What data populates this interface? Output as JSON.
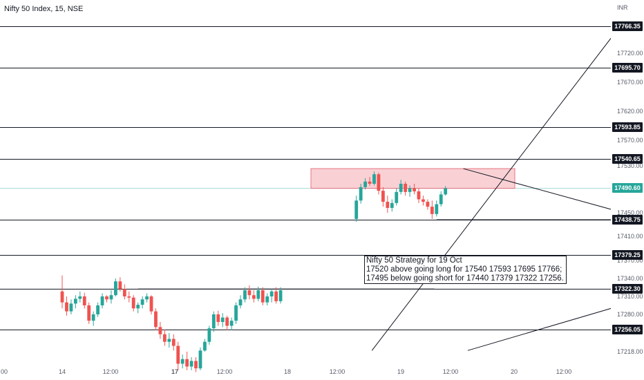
{
  "title": "Nifty 50 Index, 15, NSE",
  "currency": "INR",
  "colors": {
    "up": "#26a69a",
    "down": "#ef5350",
    "line": "#131722",
    "current": "#26a69a",
    "zone": "#f8c9ce",
    "zone_border": "#e35a6a"
  },
  "chart_data": {
    "type": "candlestick",
    "symbol": "Nifty 50 Index",
    "interval": "15",
    "exchange": "NSE",
    "y_ticks": [
      17720.0,
      17670.0,
      17620.0,
      17570.0,
      17530.0,
      17450.0,
      17410.0,
      17370.0,
      17340.0,
      17310.0,
      17280.0,
      17218.0
    ],
    "x_ticks": [
      "00",
      "14",
      "12:00",
      "17",
      "12:00",
      "18",
      "12:00",
      "19",
      "12:00",
      "20",
      "12:00"
    ],
    "bold_x_ticks": [
      "17"
    ],
    "levels": [
      {
        "value": 17766.35,
        "label": "17766.35"
      },
      {
        "value": 17695.7,
        "label": "17695.70"
      },
      {
        "value": 17593.85,
        "label": "17593.85"
      },
      {
        "value": 17540.65,
        "label": "17540.65"
      },
      {
        "value": 17438.75,
        "label": "17438.75"
      },
      {
        "value": 17379.25,
        "label": "17379.25"
      },
      {
        "value": 17322.3,
        "label": "17322.30"
      },
      {
        "value": 17256.05,
        "label": "17256.05"
      }
    ],
    "current_price": {
      "value": 17490.6,
      "label": "17490.60"
    },
    "zone": {
      "low": 17490.0,
      "high": 17525.0
    },
    "annotation": {
      "lines": [
        "Nifty 50 Strategy for 19 Oct",
        "17520 above going long for 17540 17593 17695  17766;",
        "17495 below going short for 17440 17379 17322 17256."
      ]
    },
    "candles": [
      [
        17318,
        17345,
        17290,
        17300
      ],
      [
        17300,
        17310,
        17278,
        17285
      ],
      [
        17285,
        17305,
        17280,
        17298
      ],
      [
        17298,
        17312,
        17290,
        17306
      ],
      [
        17306,
        17318,
        17300,
        17310
      ],
      [
        17310,
        17316,
        17290,
        17295
      ],
      [
        17295,
        17300,
        17265,
        17270
      ],
      [
        17270,
        17285,
        17262,
        17280
      ],
      [
        17280,
        17300,
        17276,
        17295
      ],
      [
        17295,
        17315,
        17290,
        17310
      ],
      [
        17310,
        17312,
        17300,
        17305
      ],
      [
        17305,
        17320,
        17298,
        17312
      ],
      [
        17312,
        17340,
        17310,
        17335
      ],
      [
        17335,
        17342,
        17318,
        17322
      ],
      [
        17322,
        17330,
        17305,
        17310
      ],
      [
        17310,
        17318,
        17300,
        17308
      ],
      [
        17308,
        17312,
        17285,
        17290
      ],
      [
        17290,
        17300,
        17282,
        17296
      ],
      [
        17296,
        17310,
        17290,
        17305
      ],
      [
        17305,
        17315,
        17300,
        17310
      ],
      [
        17310,
        17312,
        17280,
        17285
      ],
      [
        17285,
        17290,
        17255,
        17260
      ],
      [
        17260,
        17268,
        17240,
        17248
      ],
      [
        17248,
        17256,
        17228,
        17235
      ],
      [
        17235,
        17250,
        17225,
        17240
      ],
      [
        17240,
        17248,
        17220,
        17228
      ],
      [
        17228,
        17235,
        17198,
        17205
      ],
      [
        17205,
        17215,
        17200,
        17210
      ],
      [
        17210,
        17218,
        17198,
        17202
      ],
      [
        17202,
        17212,
        17198,
        17208
      ],
      [
        17208,
        17212,
        17196,
        17200
      ],
      [
        17200,
        17225,
        17198,
        17220
      ],
      [
        17220,
        17240,
        17218,
        17235
      ],
      [
        17235,
        17262,
        17230,
        17258
      ],
      [
        17258,
        17285,
        17252,
        17280
      ],
      [
        17280,
        17286,
        17262,
        17268
      ],
      [
        17268,
        17282,
        17260,
        17275
      ],
      [
        17275,
        17278,
        17255,
        17262
      ],
      [
        17262,
        17275,
        17255,
        17270
      ],
      [
        17270,
        17300,
        17265,
        17295
      ],
      [
        17295,
        17312,
        17290,
        17305
      ],
      [
        17305,
        17325,
        17300,
        17320
      ],
      [
        17320,
        17328,
        17305,
        17312
      ],
      [
        17312,
        17320,
        17300,
        17306
      ],
      [
        17306,
        17326,
        17302,
        17320
      ],
      [
        17320,
        17325,
        17295,
        17300
      ],
      [
        17300,
        17315,
        17295,
        17310
      ],
      [
        17310,
        17322,
        17300,
        17318
      ],
      [
        17318,
        17325,
        17298,
        17302
      ],
      [
        17302,
        17325,
        17298,
        17320
      ],
      [
        17440,
        17478,
        17435,
        17470
      ],
      [
        17470,
        17498,
        17465,
        17492
      ],
      [
        17492,
        17508,
        17488,
        17502
      ],
      [
        17502,
        17510,
        17494,
        17498
      ],
      [
        17498,
        17520,
        17495,
        17515
      ],
      [
        17515,
        17518,
        17480,
        17486
      ],
      [
        17486,
        17492,
        17460,
        17468
      ],
      [
        17468,
        17478,
        17450,
        17458
      ],
      [
        17458,
        17472,
        17452,
        17466
      ],
      [
        17466,
        17490,
        17462,
        17484
      ],
      [
        17484,
        17505,
        17480,
        17498
      ],
      [
        17498,
        17502,
        17478,
        17484
      ],
      [
        17484,
        17495,
        17476,
        17490
      ],
      [
        17490,
        17498,
        17480,
        17485
      ],
      [
        17485,
        17490,
        17466,
        17472
      ],
      [
        17472,
        17478,
        17462,
        17468
      ],
      [
        17468,
        17472,
        17455,
        17460
      ],
      [
        17460,
        17470,
        17440,
        17448
      ],
      [
        17448,
        17470,
        17444,
        17464
      ],
      [
        17464,
        17485,
        17460,
        17480
      ],
      [
        17480,
        17494,
        17478,
        17490
      ]
    ],
    "segments": [
      {
        "from": {
          "x_slot": 69.5,
          "value": 17220
        },
        "to": {
          "x_slot": 128,
          "value": 17800
        }
      },
      {
        "from": {
          "x_slot": 90,
          "value": 17525
        },
        "to": {
          "x_slot": 174.5,
          "value": 17350
        }
      },
      {
        "from": {
          "x_slot": 91,
          "value": 17220
        },
        "to": {
          "x_slot": 174.5,
          "value": 17402
        }
      },
      {
        "from": {
          "x_slot": 17,
          "value": 17322
        },
        "to": {
          "x_slot": 83.5,
          "value": 17322
        }
      },
      {
        "from": {
          "x_slot": 84,
          "value": 17438.75
        },
        "to": {
          "x_slot": 174.5,
          "value": 17438.75
        }
      }
    ]
  }
}
